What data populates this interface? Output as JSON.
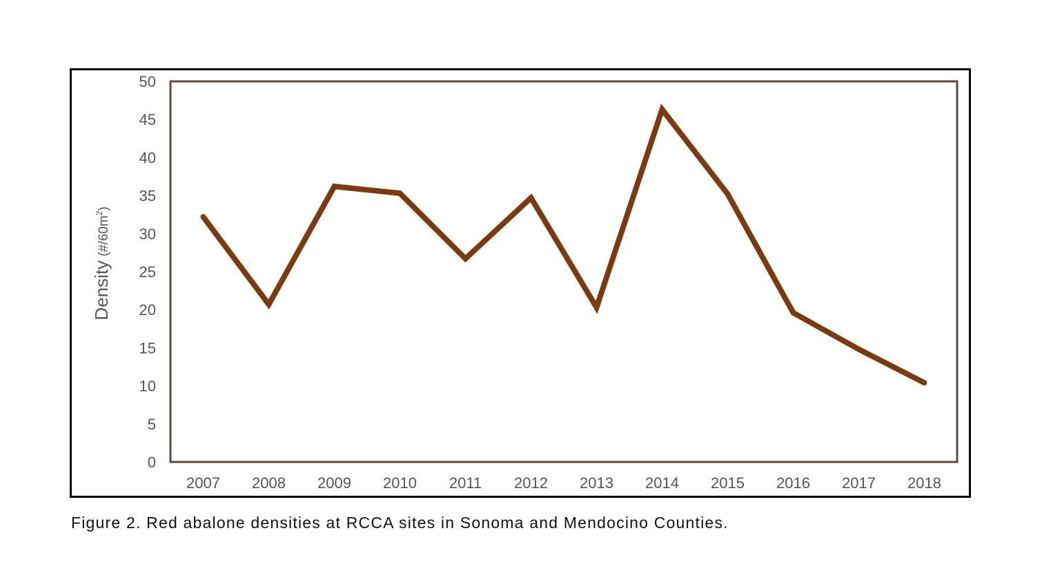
{
  "caption": "Figure 2. Red abalone densities at RCCA sites in Sonoma and Mendocino Counties.",
  "colors": {
    "line": "#7B3A10",
    "plot_border": "#5C4A3E",
    "frame": "#000000",
    "tick_text": "#555555",
    "axis_title": "#555555"
  },
  "chart_data": {
    "type": "line",
    "title": "",
    "xlabel": "",
    "ylabel": {
      "main": "Density",
      "unit_prefix": "(#/60m",
      "unit_sup": "2",
      "unit_suffix": ")"
    },
    "categories": [
      "2007",
      "2008",
      "2009",
      "2010",
      "2011",
      "2012",
      "2013",
      "2014",
      "2015",
      "2016",
      "2017",
      "2018"
    ],
    "series": [
      {
        "values": [
          32.2,
          20.7,
          36.2,
          35.3,
          26.7,
          34.7,
          20.3,
          46.3,
          35.2,
          19.6,
          14.8,
          10.4
        ]
      }
    ],
    "ylim": [
      0,
      50
    ],
    "yticks": [
      "0",
      "5",
      "10",
      "15",
      "20",
      "25",
      "30",
      "35",
      "40",
      "45",
      "50"
    ],
    "grid": false,
    "legend": "none"
  }
}
